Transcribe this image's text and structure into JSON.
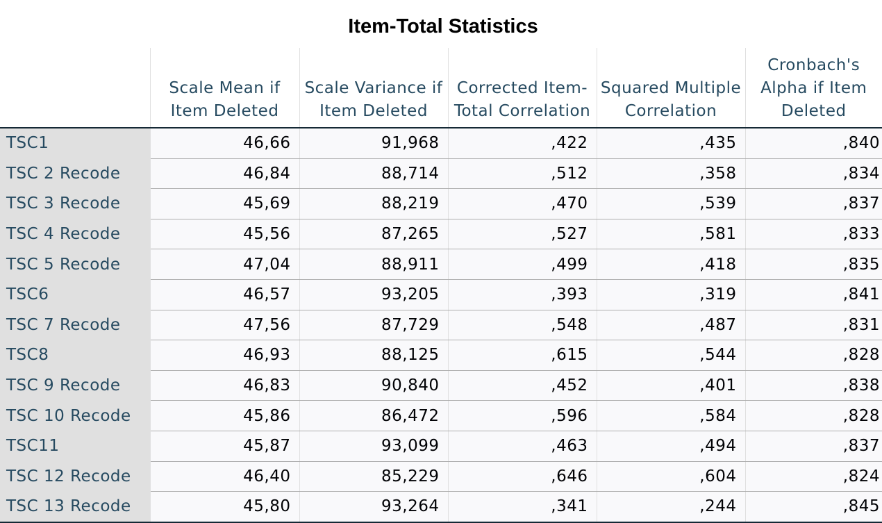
{
  "table": {
    "title": "Item-Total Statistics",
    "columns": [
      "",
      "Scale Mean if Item Deleted",
      "Scale Variance if Item Deleted",
      "Corrected Item-Total Correlation",
      "Squared Multiple Correlation",
      "Cronbach's Alpha if Item Deleted"
    ],
    "rows": [
      {
        "label": "TSC1",
        "values": [
          "46,66",
          "91,968",
          ",422",
          ",435",
          ",840"
        ]
      },
      {
        "label": "TSC 2 Recode",
        "values": [
          "46,84",
          "88,714",
          ",512",
          ",358",
          ",834"
        ]
      },
      {
        "label": "TSC 3 Recode",
        "values": [
          "45,69",
          "88,219",
          ",470",
          ",539",
          ",837"
        ]
      },
      {
        "label": "TSC 4 Recode",
        "values": [
          "45,56",
          "87,265",
          ",527",
          ",581",
          ",833"
        ]
      },
      {
        "label": "TSC 5 Recode",
        "values": [
          "47,04",
          "88,911",
          ",499",
          ",418",
          ",835"
        ]
      },
      {
        "label": "TSC6",
        "values": [
          "46,57",
          "93,205",
          ",393",
          ",319",
          ",841"
        ]
      },
      {
        "label": "TSC 7 Recode",
        "values": [
          "47,56",
          "87,729",
          ",548",
          ",487",
          ",831"
        ]
      },
      {
        "label": "TSC8",
        "values": [
          "46,93",
          "88,125",
          ",615",
          ",544",
          ",828"
        ]
      },
      {
        "label": "TSC 9 Recode",
        "values": [
          "46,83",
          "90,840",
          ",452",
          ",401",
          ",838"
        ]
      },
      {
        "label": "TSC 10 Recode",
        "values": [
          "45,86",
          "86,472",
          ",596",
          ",584",
          ",828"
        ]
      },
      {
        "label": "TSC11",
        "values": [
          "45,87",
          "93,099",
          ",463",
          ",494",
          ",837"
        ]
      },
      {
        "label": "TSC 12 Recode",
        "values": [
          "46,40",
          "85,229",
          ",646",
          ",604",
          ",824"
        ]
      },
      {
        "label": "TSC 13 Recode",
        "values": [
          "45,80",
          "93,264",
          ",341",
          ",244",
          ",845"
        ]
      }
    ]
  },
  "colors": {
    "header_text": "#264a60",
    "label_background": "#e0e0e0",
    "cell_background": "#f9f9fb",
    "cell_text": "#010205",
    "rule": "#152935",
    "row_divider": "#aeaeae"
  }
}
